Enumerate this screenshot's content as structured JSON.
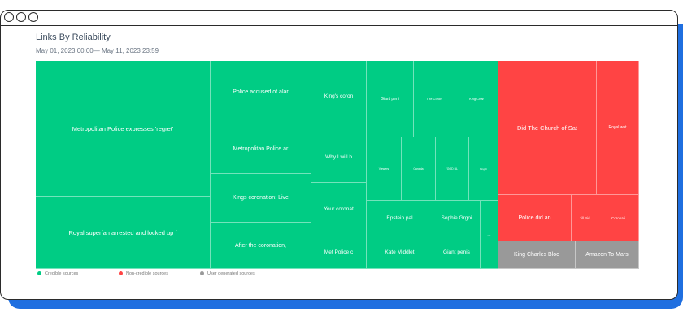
{
  "header": {
    "title": "Links By Reliability",
    "date_range": "May 01, 2023 00:00— May 11, 2023 23:59"
  },
  "colors": {
    "credible": "#00cc84",
    "non_credible": "#ff4444",
    "user_generated": "#999999",
    "window_accent": "#1f6fe0"
  },
  "legend": [
    {
      "label": "Credible sources",
      "color": "#00cc84"
    },
    {
      "label": "Non-credible sources",
      "color": "#ff4444"
    },
    {
      "label": "User generated sources",
      "color": "#999999"
    }
  ],
  "chart_data": {
    "type": "treemap",
    "title": "Links By Reliability",
    "groups": [
      {
        "name": "Credible sources",
        "items": [
          "Metropolitan Police expresses 'regret'",
          "Royal superfan arrested and locked up f",
          "Police accused of alar",
          "Metropolitan Police ar",
          "Kings coronation: Live",
          "After the coronation,",
          "King's coron",
          "Why I will b",
          "Your coronat",
          "Met Police c",
          "Giant peni",
          "The Coron",
          "King Char",
          "Viewers",
          "Canada",
          "'GOD BL",
          "King C",
          "Epstein pal",
          "Sophie Grgoi",
          "Kate Middlet",
          "Giant penis",
          "..."
        ]
      },
      {
        "name": "Non-credible sources",
        "items": [
          "Did The Church of Sat",
          "Royal wat",
          "Police did an",
          "Jill Bid",
          "Coronati"
        ]
      },
      {
        "name": "User generated sources",
        "items": [
          "King Charles Bloo",
          "Amazon To Mars"
        ]
      }
    ]
  }
}
